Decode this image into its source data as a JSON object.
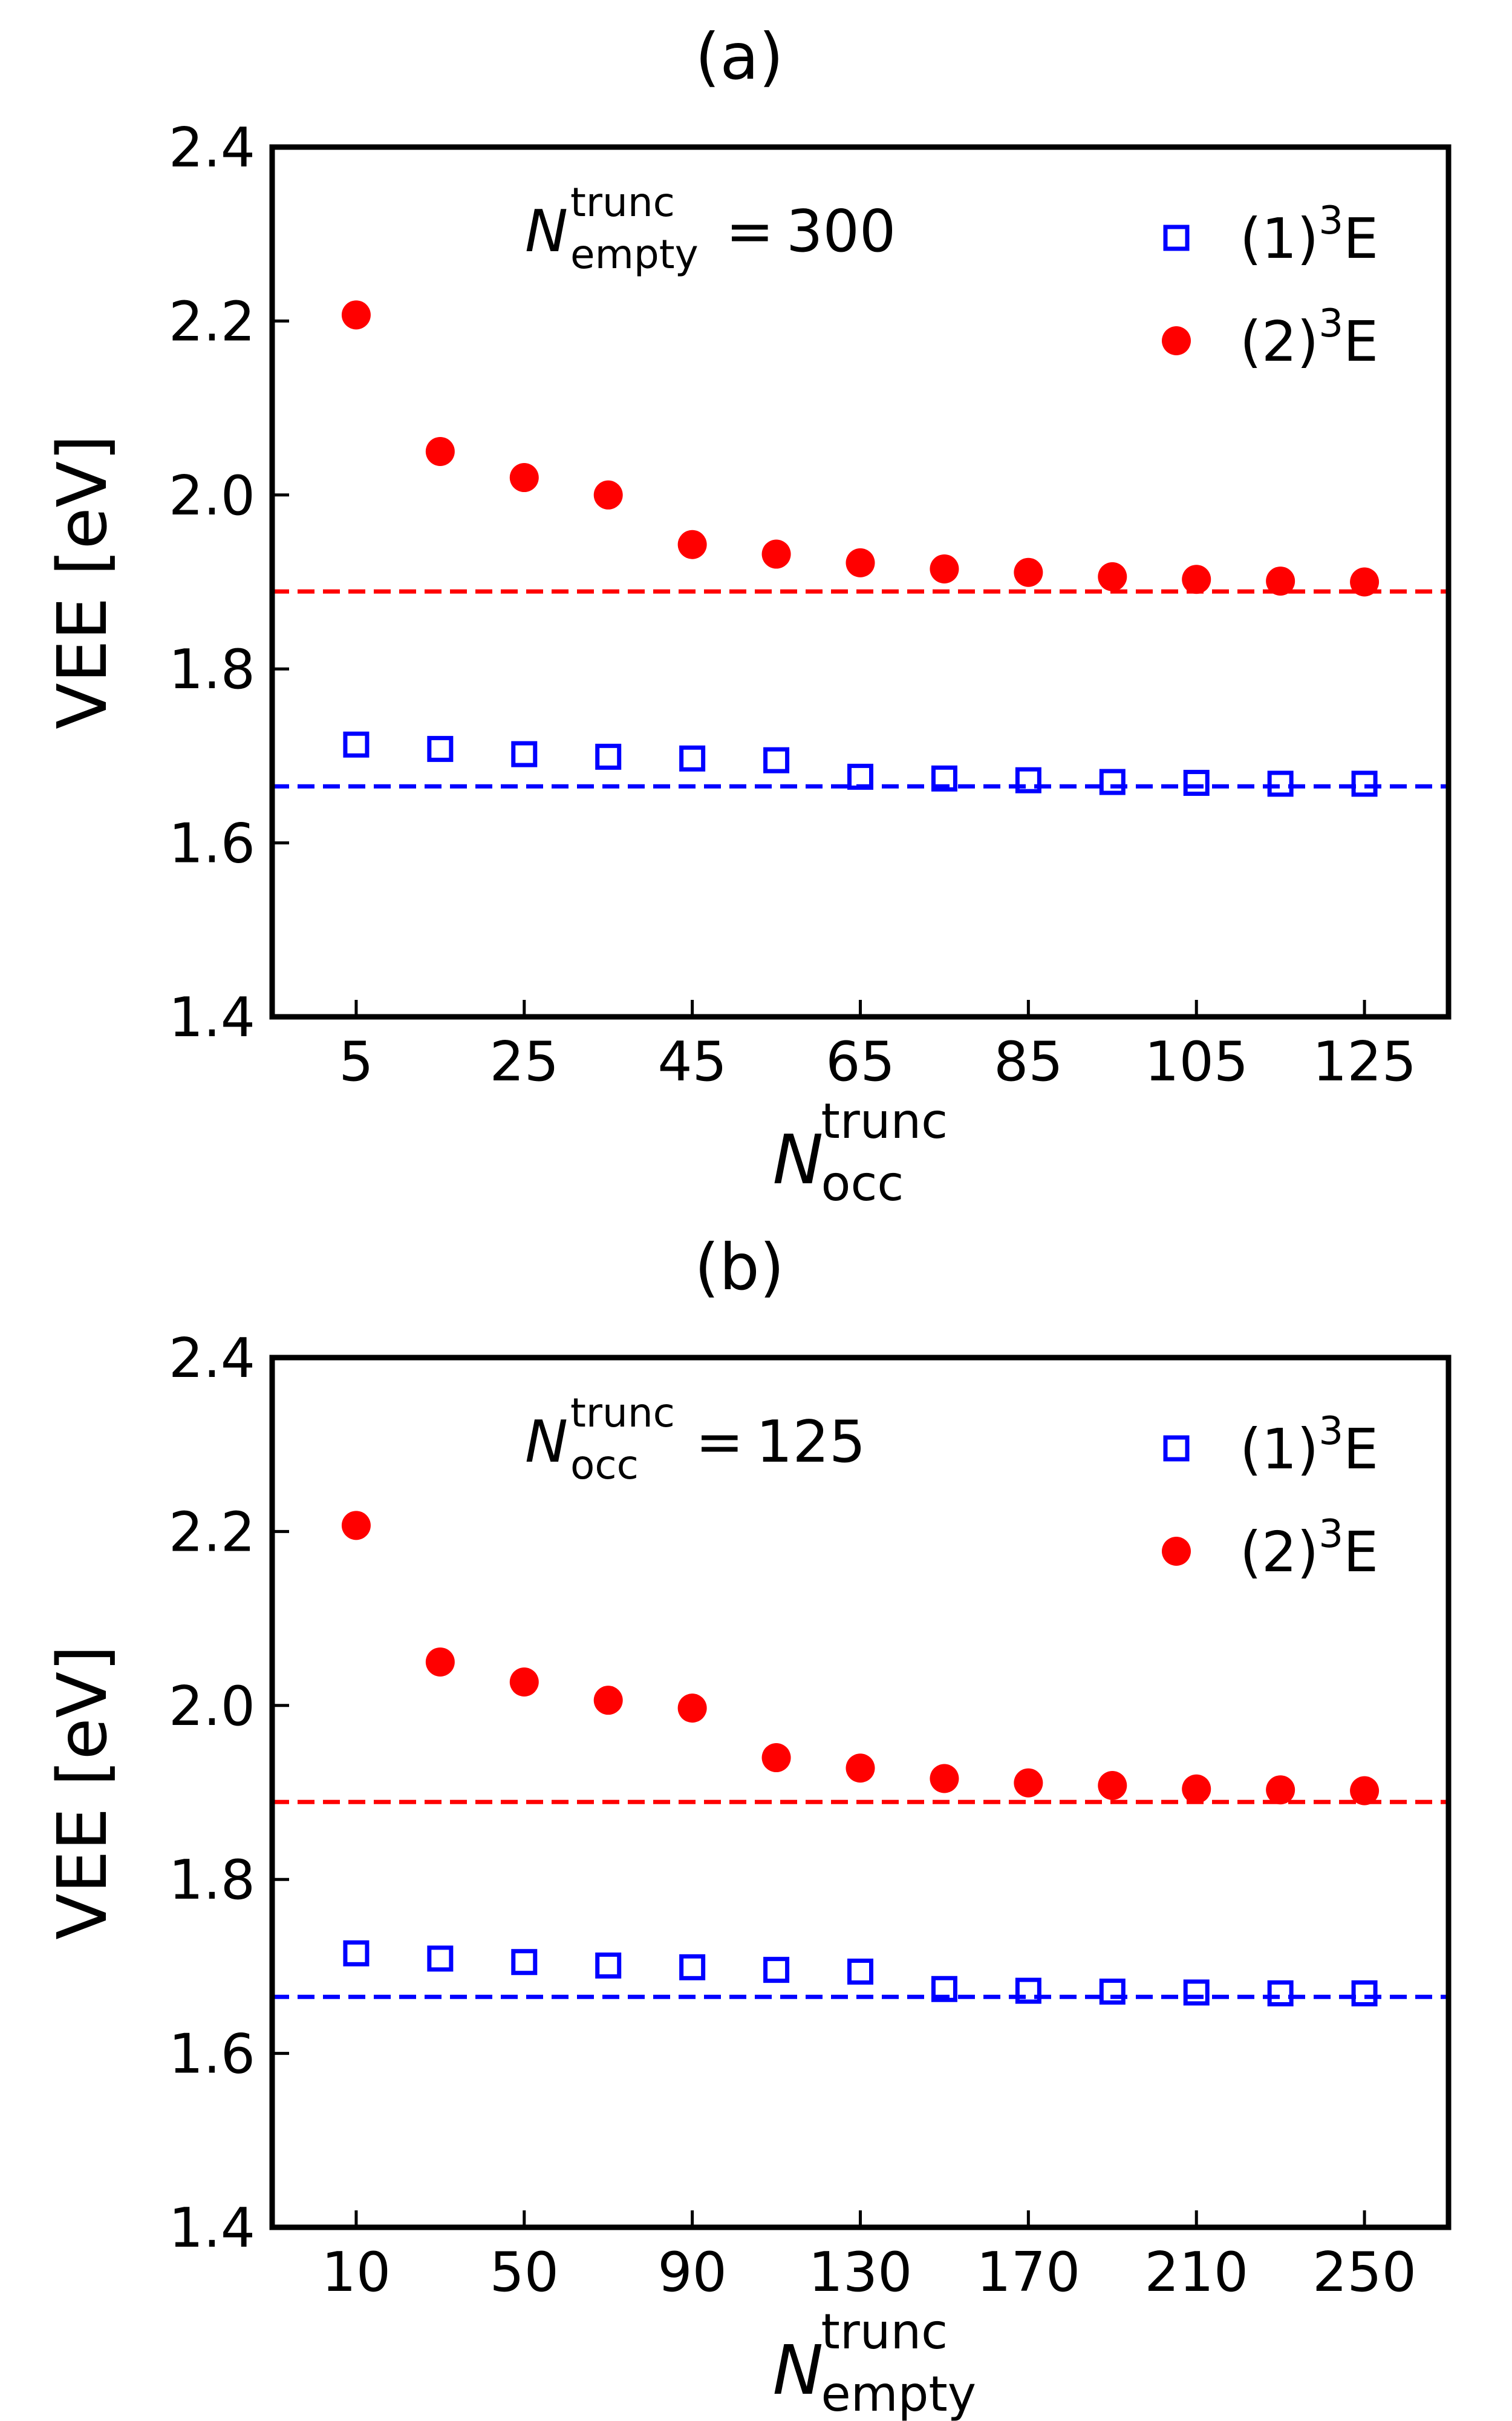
{
  "chart_data": [
    {
      "type": "scatter",
      "title": "(a)",
      "xlabel": {
        "main": "N",
        "sup": "trunc",
        "sub": "occ"
      },
      "ylabel": "VEE [eV]",
      "annotation": {
        "main": "N",
        "sup": "trunc",
        "sub": "empty",
        "eq": "=",
        "value": "300"
      },
      "xlim": [
        -5,
        135
      ],
      "ylim": [
        1.4,
        2.4
      ],
      "xticks": [
        5,
        25,
        45,
        65,
        85,
        105,
        125
      ],
      "xtick_labels": [
        "5",
        "25",
        "45",
        "65",
        "85",
        "105",
        "125"
      ],
      "yticks": [
        1.4,
        1.6,
        1.8,
        2.0,
        2.2,
        2.4
      ],
      "ytick_labels": [
        "1.4",
        "1.6",
        "1.8",
        "2.0",
        "2.2",
        "2.4"
      ],
      "legend_position": "top-right",
      "x": [
        5,
        15,
        25,
        35,
        45,
        55,
        65,
        75,
        85,
        95,
        105,
        115,
        125
      ],
      "series": [
        {
          "name": "(1)",
          "sup": "3",
          "tail": "E",
          "marker": "open-square",
          "color": "#0000ff",
          "values": [
            1.713,
            1.708,
            1.702,
            1.699,
            1.697,
            1.695,
            1.676,
            1.674,
            1.672,
            1.67,
            1.669,
            1.668,
            1.668
          ],
          "reference": 1.665
        },
        {
          "name": "(2)",
          "sup": "3",
          "tail": "E",
          "marker": "filled-circle",
          "color": "#ff0000",
          "values": [
            2.207,
            2.05,
            2.02,
            2.0,
            1.943,
            1.932,
            1.922,
            1.915,
            1.911,
            1.906,
            1.903,
            1.901,
            1.9
          ],
          "reference": 1.889
        }
      ]
    },
    {
      "type": "scatter",
      "title": "(b)",
      "xlabel": {
        "main": "N",
        "sup": "trunc",
        "sub": "empty"
      },
      "ylabel": "VEE [eV]",
      "annotation": {
        "main": "N",
        "sup": "trunc",
        "sub": "occ",
        "eq": "=",
        "value": "125"
      },
      "xlim": [
        -10,
        270
      ],
      "ylim": [
        1.4,
        2.4
      ],
      "xticks": [
        10,
        50,
        90,
        130,
        170,
        210,
        250
      ],
      "xtick_labels": [
        "10",
        "50",
        "90",
        "130",
        "170",
        "210",
        "250"
      ],
      "yticks": [
        1.4,
        1.6,
        1.8,
        2.0,
        2.2,
        2.4
      ],
      "ytick_labels": [
        "1.4",
        "1.6",
        "1.8",
        "2.0",
        "2.2",
        "2.4"
      ],
      "legend_position": "top-right",
      "x": [
        10,
        30,
        50,
        70,
        90,
        110,
        130,
        150,
        170,
        190,
        210,
        230,
        250
      ],
      "series": [
        {
          "name": "(1)",
          "sup": "3",
          "tail": "E",
          "marker": "open-square",
          "color": "#0000ff",
          "values": [
            1.715,
            1.709,
            1.705,
            1.701,
            1.699,
            1.696,
            1.694,
            1.674,
            1.672,
            1.671,
            1.67,
            1.669,
            1.669
          ],
          "reference": 1.665
        },
        {
          "name": "(2)",
          "sup": "3",
          "tail": "E",
          "marker": "filled-circle",
          "color": "#ff0000",
          "values": [
            2.207,
            2.05,
            2.027,
            2.006,
            1.997,
            1.94,
            1.928,
            1.916,
            1.911,
            1.908,
            1.904,
            1.903,
            1.902
          ],
          "reference": 1.889
        }
      ]
    }
  ]
}
